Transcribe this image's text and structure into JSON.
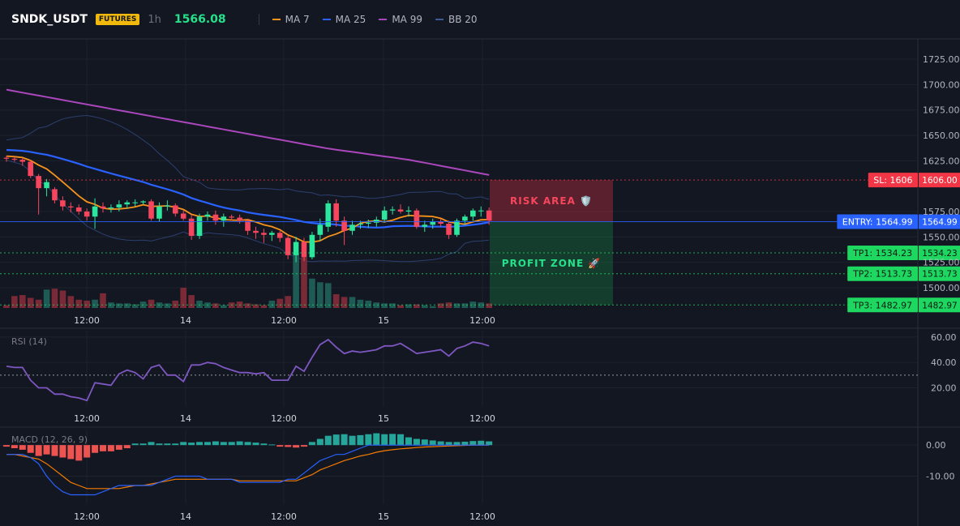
{
  "header": {
    "symbol": "SNDK_USDT",
    "badge": "FUTURES",
    "timeframe": "1h",
    "last_price": "1566.08",
    "indicators": [
      {
        "label": "MA 7",
        "color": "#f7931a"
      },
      {
        "label": "MA 25",
        "color": "#2962ff"
      },
      {
        "label": "MA 99",
        "color": "#ab47bc"
      },
      {
        "label": "BB 20",
        "color": "#3d5a98"
      }
    ]
  },
  "colors": {
    "up": "#26a69a",
    "up_bright": "#2ee59d",
    "down": "#f6465d",
    "down_dark": "#9e2b3a",
    "grid": "#1e222d",
    "text": "#b2b5be",
    "sl": "#f23645",
    "entry": "#2962ff",
    "tp": "#1ed760",
    "rsi": "#7e57c2",
    "macd_line": "#2962ff",
    "signal_line": "#f57c00",
    "hist_pos": "#26a69a",
    "hist_neg": "#ef5350"
  },
  "chart_data": [
    {
      "type": "candlestick",
      "name": "price",
      "y_ticks": [
        "1725.00",
        "1700.00",
        "1675.00",
        "1650.00",
        "1625.00",
        "1575.00",
        "1550.00",
        "1525.00",
        "1500.00"
      ],
      "x_ticks": [
        "12:00",
        "14",
        "12:00",
        "15",
        "12:00"
      ],
      "ylim": [
        1480,
        1745
      ],
      "candles": [
        {
          "o": 1628,
          "h": 1630,
          "l": 1624,
          "c": 1627
        },
        {
          "o": 1627,
          "h": 1629,
          "l": 1624,
          "c": 1626
        },
        {
          "o": 1626,
          "h": 1628,
          "l": 1620,
          "c": 1624
        },
        {
          "o": 1624,
          "h": 1626,
          "l": 1608,
          "c": 1610
        },
        {
          "o": 1610,
          "h": 1612,
          "l": 1572,
          "c": 1598
        },
        {
          "o": 1598,
          "h": 1607,
          "l": 1590,
          "c": 1604
        },
        {
          "o": 1597,
          "h": 1599,
          "l": 1583,
          "c": 1586
        },
        {
          "o": 1586,
          "h": 1590,
          "l": 1576,
          "c": 1580
        },
        {
          "o": 1580,
          "h": 1584,
          "l": 1574,
          "c": 1579
        },
        {
          "o": 1579,
          "h": 1582,
          "l": 1572,
          "c": 1575
        },
        {
          "o": 1575,
          "h": 1578,
          "l": 1566,
          "c": 1570
        },
        {
          "o": 1570,
          "h": 1588,
          "l": 1558,
          "c": 1580
        },
        {
          "o": 1580,
          "h": 1584,
          "l": 1574,
          "c": 1578
        },
        {
          "o": 1578,
          "h": 1582,
          "l": 1574,
          "c": 1579
        },
        {
          "o": 1579,
          "h": 1586,
          "l": 1575,
          "c": 1582
        },
        {
          "o": 1582,
          "h": 1586,
          "l": 1578,
          "c": 1584
        },
        {
          "o": 1584,
          "h": 1587,
          "l": 1580,
          "c": 1584
        },
        {
          "o": 1584,
          "h": 1586,
          "l": 1582,
          "c": 1585
        },
        {
          "o": 1585,
          "h": 1587,
          "l": 1566,
          "c": 1568
        },
        {
          "o": 1568,
          "h": 1584,
          "l": 1565,
          "c": 1580
        },
        {
          "o": 1580,
          "h": 1586,
          "l": 1576,
          "c": 1581
        },
        {
          "o": 1581,
          "h": 1583,
          "l": 1570,
          "c": 1573
        },
        {
          "o": 1573,
          "h": 1576,
          "l": 1566,
          "c": 1568
        },
        {
          "o": 1568,
          "h": 1572,
          "l": 1547,
          "c": 1551
        },
        {
          "o": 1551,
          "h": 1573,
          "l": 1548,
          "c": 1570
        },
        {
          "o": 1570,
          "h": 1575,
          "l": 1566,
          "c": 1572
        },
        {
          "o": 1572,
          "h": 1576,
          "l": 1562,
          "c": 1566
        },
        {
          "o": 1566,
          "h": 1573,
          "l": 1560,
          "c": 1570
        },
        {
          "o": 1570,
          "h": 1572,
          "l": 1566,
          "c": 1569
        },
        {
          "o": 1569,
          "h": 1572,
          "l": 1563,
          "c": 1566
        },
        {
          "o": 1566,
          "h": 1568,
          "l": 1552,
          "c": 1556
        },
        {
          "o": 1556,
          "h": 1560,
          "l": 1548,
          "c": 1554
        },
        {
          "o": 1554,
          "h": 1558,
          "l": 1544,
          "c": 1552
        },
        {
          "o": 1552,
          "h": 1556,
          "l": 1546,
          "c": 1554
        },
        {
          "o": 1554,
          "h": 1556,
          "l": 1545,
          "c": 1549
        },
        {
          "o": 1549,
          "h": 1551,
          "l": 1528,
          "c": 1532
        },
        {
          "o": 1532,
          "h": 1550,
          "l": 1525,
          "c": 1545
        },
        {
          "o": 1545,
          "h": 1549,
          "l": 1526,
          "c": 1530
        },
        {
          "o": 1530,
          "h": 1555,
          "l": 1528,
          "c": 1552
        },
        {
          "o": 1552,
          "h": 1568,
          "l": 1546,
          "c": 1562
        },
        {
          "o": 1560,
          "h": 1586,
          "l": 1555,
          "c": 1583
        },
        {
          "o": 1583,
          "h": 1587,
          "l": 1560,
          "c": 1566
        },
        {
          "o": 1566,
          "h": 1570,
          "l": 1542,
          "c": 1556
        },
        {
          "o": 1556,
          "h": 1566,
          "l": 1552,
          "c": 1562
        },
        {
          "o": 1562,
          "h": 1566,
          "l": 1558,
          "c": 1563
        },
        {
          "o": 1563,
          "h": 1567,
          "l": 1559,
          "c": 1564
        },
        {
          "o": 1564,
          "h": 1570,
          "l": 1560,
          "c": 1567
        },
        {
          "o": 1567,
          "h": 1580,
          "l": 1564,
          "c": 1576
        },
        {
          "o": 1576,
          "h": 1580,
          "l": 1572,
          "c": 1577
        },
        {
          "o": 1577,
          "h": 1582,
          "l": 1573,
          "c": 1575
        },
        {
          "o": 1575,
          "h": 1580,
          "l": 1570,
          "c": 1576
        },
        {
          "o": 1576,
          "h": 1578,
          "l": 1558,
          "c": 1560
        },
        {
          "o": 1560,
          "h": 1566,
          "l": 1555,
          "c": 1562
        },
        {
          "o": 1562,
          "h": 1568,
          "l": 1558,
          "c": 1565
        },
        {
          "o": 1565,
          "h": 1568,
          "l": 1560,
          "c": 1563
        },
        {
          "o": 1563,
          "h": 1566,
          "l": 1548,
          "c": 1552
        },
        {
          "o": 1552,
          "h": 1568,
          "l": 1550,
          "c": 1566
        },
        {
          "o": 1566,
          "h": 1572,
          "l": 1562,
          "c": 1570
        },
        {
          "o": 1570,
          "h": 1578,
          "l": 1566,
          "c": 1576
        },
        {
          "o": 1576,
          "h": 1580,
          "l": 1570,
          "c": 1576
        },
        {
          "o": 1576,
          "h": 1579,
          "l": 1562,
          "c": 1566
        }
      ],
      "volume": [
        3,
        13,
        14,
        11,
        9,
        20,
        21,
        19,
        13,
        9,
        8,
        9,
        16,
        6,
        5,
        5,
        4,
        7,
        9,
        6,
        5,
        8,
        22,
        14,
        8,
        6,
        5,
        3,
        6,
        7,
        5,
        4,
        3,
        8,
        10,
        13,
        60,
        55,
        32,
        28,
        27,
        15,
        12,
        12,
        9,
        8,
        6,
        5,
        5,
        3,
        4,
        4,
        3,
        2,
        5,
        6,
        5,
        5,
        7,
        6,
        5
      ],
      "levels": [
        {
          "id": "sl",
          "label": "SL: 1606",
          "value": 1606.0,
          "price_label": "1606.00"
        },
        {
          "id": "entry",
          "label": "ENTRY: 1564.99",
          "value": 1564.99,
          "price_label": "1564.99"
        },
        {
          "id": "tp1",
          "label": "TP1: 1534.23",
          "value": 1534.23,
          "price_label": "1534.23"
        },
        {
          "id": "tp2",
          "label": "TP2: 1513.73",
          "value": 1513.73,
          "price_label": "1513.73"
        },
        {
          "id": "tp3",
          "label": "TP3: 1482.97",
          "value": 1482.97,
          "price_label": "1482.97"
        }
      ],
      "zones": [
        {
          "id": "risk",
          "label": "RISK AREA 🛡️",
          "from": 1606.0,
          "to": 1564.99
        },
        {
          "id": "profit",
          "label": "PROFIT ZONE 🚀",
          "from": 1564.99,
          "to": 1482.97
        }
      ]
    },
    {
      "type": "line",
      "name": "RSI (14)",
      "y_ticks": [
        "60.00",
        "40.00",
        "20.00"
      ],
      "x_ticks": [
        "12:00",
        "14",
        "12:00",
        "15",
        "12:00"
      ],
      "ylim": [
        5,
        65
      ],
      "reference_line": 30,
      "values": [
        37,
        36,
        36,
        26,
        20,
        20,
        15,
        15,
        13,
        12,
        10,
        24,
        23,
        22,
        31,
        34,
        32,
        27,
        36,
        38,
        30,
        30,
        25,
        38,
        38,
        40,
        39,
        36,
        34,
        32,
        32,
        31,
        32,
        26,
        26,
        26,
        37,
        33,
        44,
        54,
        58,
        52,
        47,
        49,
        48,
        49,
        50,
        53,
        53,
        55,
        51,
        47,
        48,
        49,
        50,
        45,
        51,
        53,
        56,
        55,
        53
      ]
    },
    {
      "type": "bar+line",
      "name": "MACD (12, 26, 9)",
      "y_ticks": [
        "0.00",
        "-10.00"
      ],
      "x_ticks": [
        "12:00",
        "14",
        "12:00",
        "15",
        "12:00"
      ],
      "ylim": [
        -19,
        5
      ],
      "histogram": [
        -0.5,
        -1,
        -1.5,
        -2.5,
        -3.5,
        -3,
        -3.5,
        -4,
        -4.5,
        -5,
        -4,
        -2.5,
        -2,
        -2,
        -1.5,
        -1,
        0.5,
        0.5,
        1,
        0.5,
        0.5,
        0.5,
        1,
        0.8,
        1,
        1,
        1.2,
        1,
        1,
        1.2,
        1,
        0.8,
        0.5,
        0.2,
        -0.5,
        -0.6,
        -0.8,
        -0.5,
        1,
        2,
        3,
        3.4,
        3.5,
        3,
        3.2,
        3.5,
        3.8,
        3.5,
        3.6,
        3.5,
        2.5,
        2,
        1.8,
        1.5,
        1.2,
        1,
        1,
        1.1,
        1.3,
        1.4,
        1.2
      ],
      "macd": [
        -3,
        -3,
        -3,
        -4,
        -6,
        -10,
        -13,
        -15,
        -16,
        -16,
        -16,
        -16,
        -15,
        -14,
        -13,
        -13,
        -13,
        -13,
        -13,
        -12,
        -11,
        -10,
        -10,
        -10,
        -10,
        -11,
        -11,
        -11,
        -11,
        -12,
        -12,
        -12,
        -12,
        -12,
        -12,
        -11,
        -11,
        -9,
        -7,
        -5,
        -4,
        -3,
        -3,
        -2,
        -1,
        0,
        0,
        0,
        0,
        0,
        0,
        0,
        0,
        0,
        0,
        0,
        0,
        0,
        0,
        0,
        0
      ],
      "signal": [
        -3,
        -3,
        -3.5,
        -4,
        -4.5,
        -6,
        -8,
        -10,
        -12,
        -13,
        -14,
        -14,
        -14,
        -14,
        -14,
        -13.5,
        -13,
        -13,
        -12.5,
        -12,
        -11.5,
        -11,
        -11,
        -11,
        -11,
        -11,
        -11,
        -11,
        -11,
        -11.5,
        -11.5,
        -11.5,
        -11.5,
        -11.5,
        -11.5,
        -11.5,
        -11.5,
        -10.5,
        -9.5,
        -8,
        -7,
        -6,
        -5,
        -4.3,
        -3.5,
        -3,
        -2.3,
        -1.8,
        -1.5,
        -1.2,
        -1,
        -0.8,
        -0.6,
        -0.5,
        -0.4,
        -0.3,
        -0.2,
        -0.1,
        0,
        0,
        0
      ]
    }
  ]
}
